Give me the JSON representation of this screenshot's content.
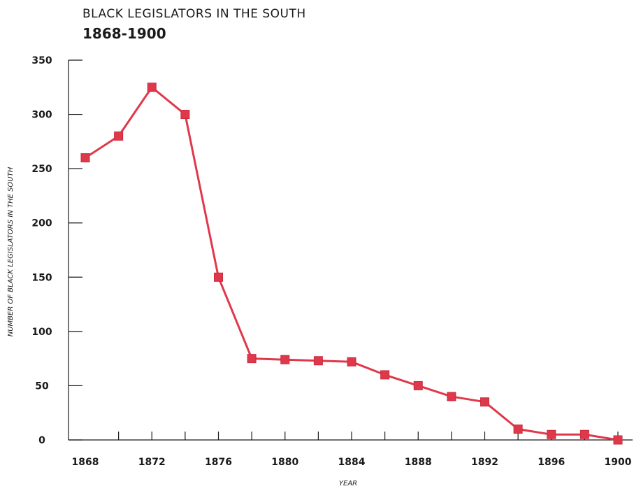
{
  "chart_data": {
    "type": "line",
    "title": "BLACK LEGISLATORS IN THE SOUTH",
    "subtitle": "1868-1900",
    "xlabel": "YEAR",
    "ylabel": "NUMBER OF BLACK LEGISLATORS IN THE SOUTH",
    "x": [
      1868,
      1870,
      1872,
      1874,
      1876,
      1878,
      1880,
      1882,
      1884,
      1886,
      1888,
      1890,
      1892,
      1894,
      1896,
      1898,
      1900
    ],
    "series": [
      {
        "values": [
          260,
          280,
          325,
          300,
          150,
          75,
          74,
          73,
          72,
          60,
          50,
          40,
          35,
          10,
          5,
          5,
          0
        ]
      }
    ],
    "xticks": [
      "1868",
      "1872",
      "1876",
      "1880",
      "1884",
      "1888",
      "1892",
      "1896",
      "1900"
    ],
    "yticks": [
      "0",
      "50",
      "100",
      "150",
      "200",
      "250",
      "300",
      "350"
    ],
    "xlim": [
      1868,
      1900
    ],
    "ylim": [
      0,
      350
    ],
    "grid": false,
    "line_color": "#e0384b",
    "marker_color": "#e0384b"
  }
}
